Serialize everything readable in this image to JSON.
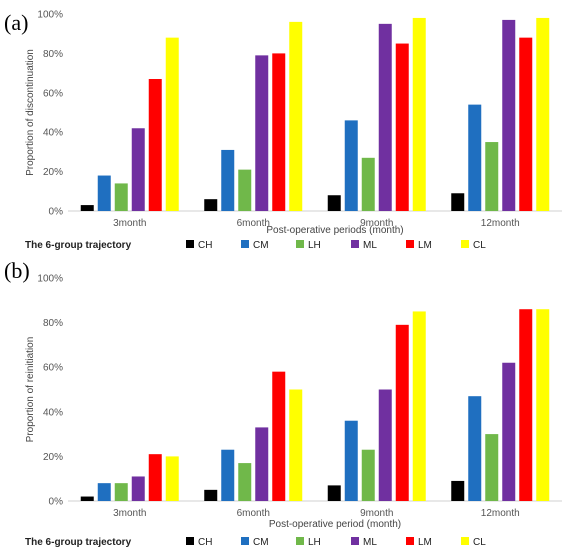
{
  "chart_data": [
    {
      "panel_label": "(a)",
      "type": "bar",
      "categories": [
        "3month",
        "6month",
        "9month",
        "12month"
      ],
      "series": [
        {
          "name": "CH",
          "color": "#000000",
          "values": [
            3,
            6,
            8,
            9
          ]
        },
        {
          "name": "CM",
          "color": "#1f6fc0",
          "values": [
            18,
            31,
            46,
            54
          ]
        },
        {
          "name": "LH",
          "color": "#70b84a",
          "values": [
            14,
            21,
            27,
            35
          ]
        },
        {
          "name": "ML",
          "color": "#7030a0",
          "values": [
            42,
            79,
            95,
            97
          ]
        },
        {
          "name": "LM",
          "color": "#ff0000",
          "values": [
            67,
            80,
            85,
            88
          ]
        },
        {
          "name": "CL",
          "color": "#ffff00",
          "values": [
            88,
            96,
            98,
            98
          ]
        }
      ],
      "yticks": [
        "0%",
        "20%",
        "40%",
        "60%",
        "80%",
        "100%"
      ],
      "ylim": [
        0,
        100
      ],
      "xlabel": "Post-operative periods (month)",
      "ylabel": "Proportion of discontinuation",
      "legend_title": "The 6-group trajectory",
      "legend_position": "bottom",
      "grid": false
    },
    {
      "panel_label": "(b)",
      "type": "bar",
      "categories": [
        "3month",
        "6month",
        "9month",
        "12month"
      ],
      "series": [
        {
          "name": "CH",
          "color": "#000000",
          "values": [
            2,
            5,
            7,
            9
          ]
        },
        {
          "name": "CM",
          "color": "#1f6fc0",
          "values": [
            8,
            23,
            36,
            47
          ]
        },
        {
          "name": "LH",
          "color": "#70b84a",
          "values": [
            8,
            17,
            23,
            30
          ]
        },
        {
          "name": "ML",
          "color": "#7030a0",
          "values": [
            11,
            33,
            50,
            62
          ]
        },
        {
          "name": "LM",
          "color": "#ff0000",
          "values": [
            21,
            58,
            79,
            86
          ]
        },
        {
          "name": "CL",
          "color": "#ffff00",
          "values": [
            20,
            50,
            85,
            86
          ]
        }
      ],
      "yticks": [
        "0%",
        "20%",
        "40%",
        "60%",
        "80%",
        "100%"
      ],
      "ylim": [
        0,
        100
      ],
      "xlabel": "Post-operative period (month)",
      "ylabel": "Proportion of reinitiation",
      "legend_title": "The 6-group trajectory",
      "legend_position": "bottom",
      "grid": false
    }
  ]
}
